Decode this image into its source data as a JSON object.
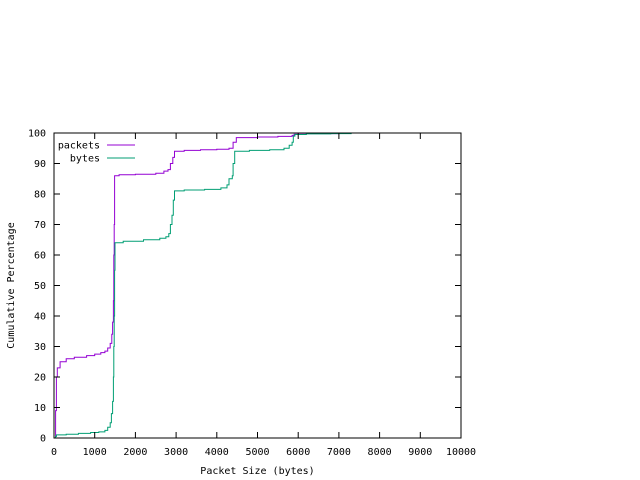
{
  "chart_data": {
    "type": "line",
    "title": "",
    "xlabel": "Packet Size (bytes)",
    "ylabel": "Cumulative Percentage",
    "xlim": [
      0,
      10000
    ],
    "ylim": [
      0,
      100
    ],
    "x_ticks": [
      0,
      1000,
      2000,
      3000,
      4000,
      5000,
      6000,
      7000,
      8000,
      9000,
      10000
    ],
    "y_ticks": [
      0,
      10,
      20,
      30,
      40,
      50,
      60,
      70,
      80,
      90,
      100
    ],
    "grid": false,
    "legend_position": "top-left",
    "series": [
      {
        "name": "packets",
        "color": "#9400d3",
        "points": [
          [
            40,
            0
          ],
          [
            40,
            9
          ],
          [
            60,
            9
          ],
          [
            60,
            20
          ],
          [
            80,
            20
          ],
          [
            80,
            23
          ],
          [
            150,
            25
          ],
          [
            300,
            26
          ],
          [
            500,
            26.5
          ],
          [
            800,
            27
          ],
          [
            1000,
            27.5
          ],
          [
            1150,
            28
          ],
          [
            1250,
            28.5
          ],
          [
            1320,
            29.5
          ],
          [
            1380,
            31
          ],
          [
            1420,
            34
          ],
          [
            1440,
            38
          ],
          [
            1460,
            45
          ],
          [
            1470,
            60
          ],
          [
            1480,
            70
          ],
          [
            1490,
            86
          ],
          [
            1600,
            86.3
          ],
          [
            2000,
            86.5
          ],
          [
            2500,
            86.8
          ],
          [
            2700,
            87.5
          ],
          [
            2800,
            88
          ],
          [
            2860,
            90
          ],
          [
            2920,
            92
          ],
          [
            2960,
            94
          ],
          [
            3200,
            94.3
          ],
          [
            3600,
            94.5
          ],
          [
            4000,
            94.7
          ],
          [
            4300,
            95
          ],
          [
            4400,
            97
          ],
          [
            4480,
            98.5
          ],
          [
            5000,
            98.7
          ],
          [
            5500,
            98.9
          ],
          [
            5850,
            99.2
          ],
          [
            5900,
            99.6
          ],
          [
            6200,
            99.8
          ],
          [
            7000,
            99.9
          ],
          [
            7300,
            100
          ]
        ]
      },
      {
        "name": "bytes",
        "color": "#009e73",
        "points": [
          [
            40,
            0
          ],
          [
            40,
            0.5
          ],
          [
            60,
            0.5
          ],
          [
            60,
            1
          ],
          [
            300,
            1.2
          ],
          [
            600,
            1.5
          ],
          [
            900,
            1.8
          ],
          [
            1100,
            2
          ],
          [
            1250,
            2.5
          ],
          [
            1320,
            3.5
          ],
          [
            1380,
            5
          ],
          [
            1410,
            8
          ],
          [
            1440,
            12
          ],
          [
            1460,
            20
          ],
          [
            1470,
            30
          ],
          [
            1480,
            40
          ],
          [
            1490,
            55
          ],
          [
            1500,
            64
          ],
          [
            1700,
            64.5
          ],
          [
            2200,
            65
          ],
          [
            2600,
            65.5
          ],
          [
            2750,
            66
          ],
          [
            2820,
            67
          ],
          [
            2860,
            70
          ],
          [
            2900,
            73
          ],
          [
            2930,
            78
          ],
          [
            2960,
            81
          ],
          [
            3200,
            81.3
          ],
          [
            3700,
            81.5
          ],
          [
            4100,
            82
          ],
          [
            4250,
            83
          ],
          [
            4300,
            85
          ],
          [
            4380,
            86
          ],
          [
            4400,
            90
          ],
          [
            4440,
            94
          ],
          [
            4800,
            94.3
          ],
          [
            5300,
            94.5
          ],
          [
            5650,
            95
          ],
          [
            5780,
            96
          ],
          [
            5850,
            97
          ],
          [
            5880,
            99
          ],
          [
            5920,
            99.5
          ],
          [
            6200,
            99.7
          ],
          [
            6800,
            99.8
          ],
          [
            7300,
            100
          ]
        ]
      }
    ]
  }
}
